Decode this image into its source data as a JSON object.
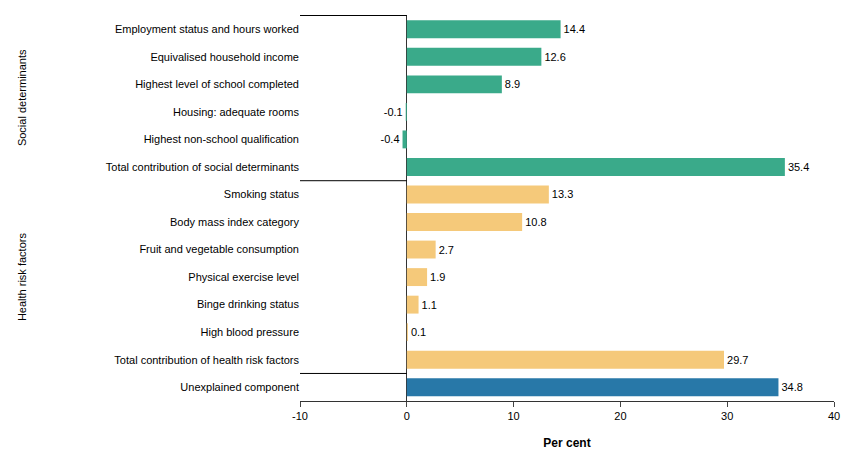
{
  "chart_data": {
    "type": "bar",
    "orientation": "horizontal",
    "categories": [
      "Employment status and hours worked",
      "Equivalised household income",
      "Highest level of school completed",
      "Housing: adequate rooms",
      "Highest non-school qualification",
      "Total contribution of social determinants",
      "Smoking status",
      "Body mass index category",
      "Fruit and vegetable consumption",
      "Physical exercise level",
      "Binge drinking status",
      "High blood pressure",
      "Total contribution of health risk factors",
      "Unexplained component"
    ],
    "values": [
      14.4,
      12.6,
      8.9,
      -0.1,
      -0.4,
      35.4,
      13.3,
      10.8,
      2.7,
      1.9,
      1.1,
      0.1,
      29.7,
      34.8
    ],
    "colors": [
      "#3aaa8a",
      "#3aaa8a",
      "#3aaa8a",
      "#3aaa8a",
      "#3aaa8a",
      "#3aaa8a",
      "#f5c97a",
      "#f5c97a",
      "#f5c97a",
      "#f5c97a",
      "#f5c97a",
      "#f5c97a",
      "#f5c97a",
      "#2878a8"
    ],
    "xlabel": "Per cent",
    "xlim": [
      -10,
      40
    ],
    "xticks": [
      -10,
      0,
      10,
      20,
      30,
      40
    ],
    "data_labels": true,
    "grid": false,
    "annotations": [
      "Social determinants",
      "Health risk factors"
    ]
  }
}
